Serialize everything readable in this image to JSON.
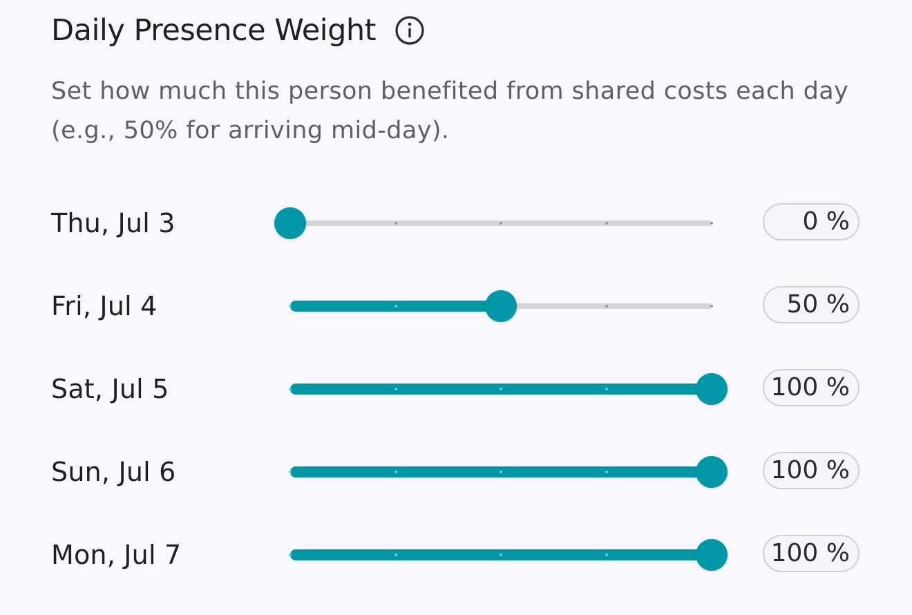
{
  "header": {
    "title": "Daily Presence Weight",
    "info_icon": "info-circle-icon"
  },
  "description": "Set how much this person benefited from shared costs each day (e.g., 50% for arriving mid-day).",
  "colors": {
    "accent": "#0097a7",
    "track": "#d4d4d8",
    "background": "#f8f8fe"
  },
  "slider_steps": [
    0,
    25,
    50,
    75,
    100
  ],
  "days": [
    {
      "label": "Thu, Jul 3",
      "value": 0,
      "display": "0 %"
    },
    {
      "label": "Fri, Jul 4",
      "value": 50,
      "display": "50 %"
    },
    {
      "label": "Sat, Jul 5",
      "value": 100,
      "display": "100 %"
    },
    {
      "label": "Sun, Jul 6",
      "value": 100,
      "display": "100 %"
    },
    {
      "label": "Mon, Jul 7",
      "value": 100,
      "display": "100 %"
    }
  ]
}
